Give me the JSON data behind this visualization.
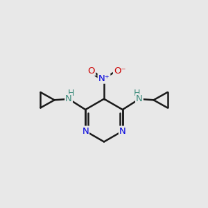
{
  "background_color": "#e8e8e8",
  "atom_colors": {
    "N": "#0000dd",
    "O": "#cc0000",
    "C": "#000000",
    "H": "#3a8a7a",
    "NH": "#3a8a7a"
  },
  "bond_color": "#1a1a1a",
  "bond_width": 1.8,
  "figsize": [
    3.0,
    3.0
  ],
  "dpi": 100
}
